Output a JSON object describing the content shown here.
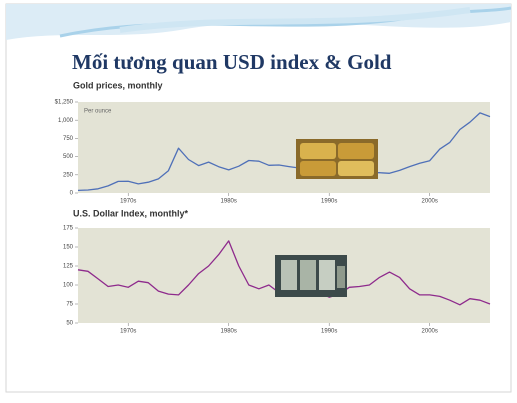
{
  "slide_title": "Mối tương quan USD index & Gold",
  "chart_data": [
    {
      "type": "line",
      "title": "Gold prices, monthly",
      "annotation": "Per ounce",
      "x": [
        1970,
        1971,
        1972,
        1973,
        1974,
        1975,
        1976,
        1977,
        1978,
        1979,
        1980,
        1981,
        1982,
        1983,
        1984,
        1985,
        1986,
        1987,
        1988,
        1989,
        1990,
        1991,
        1992,
        1993,
        1994,
        1995,
        1996,
        1997,
        1998,
        1999,
        2000,
        2001,
        2002,
        2003,
        2004,
        2005,
        2006,
        2007,
        2008,
        2009,
        2010,
        2011
      ],
      "series": [
        {
          "name": "Gold",
          "color": "#4f70b8",
          "values": [
            36,
            41,
            58,
            97,
            159,
            161,
            125,
            148,
            193,
            306,
            615,
            460,
            376,
            424,
            361,
            317,
            368,
            447,
            437,
            381,
            384,
            362,
            344,
            360,
            384,
            384,
            388,
            331,
            294,
            279,
            279,
            271,
            310,
            363,
            409,
            444,
            603,
            695,
            872,
            972,
            1100,
            1050
          ]
        }
      ],
      "xlim": [
        1970,
        2011
      ],
      "xticks": [
        {
          "value": 1975,
          "label": "1970s"
        },
        {
          "value": 1985,
          "label": "1980s"
        },
        {
          "value": 1995,
          "label": "1990s"
        },
        {
          "value": 2005,
          "label": "2000s"
        }
      ],
      "ylim": [
        0,
        1250
      ],
      "yticks": [
        0,
        250,
        500,
        750,
        {
          "value": 1000,
          "label": "1,000"
        },
        {
          "value": 1250,
          "label": "$1,250"
        }
      ]
    },
    {
      "type": "line",
      "title": "U.S. Dollar Index, monthly*",
      "x": [
        1970,
        1971,
        1972,
        1973,
        1974,
        1975,
        1976,
        1977,
        1978,
        1979,
        1980,
        1981,
        1982,
        1983,
        1984,
        1985,
        1986,
        1987,
        1988,
        1989,
        1990,
        1991,
        1992,
        1993,
        1994,
        1995,
        1996,
        1997,
        1998,
        1999,
        2000,
        2001,
        2002,
        2003,
        2004,
        2005,
        2006,
        2007,
        2008,
        2009,
        2010,
        2011
      ],
      "series": [
        {
          "name": "U.S. Dollar Index",
          "color": "#8e2a8c",
          "values": [
            120,
            118,
            108,
            98,
            100,
            97,
            105,
            103,
            92,
            88,
            87,
            100,
            115,
            125,
            140,
            158,
            125,
            100,
            95,
            100,
            90,
            90,
            88,
            93,
            90,
            84,
            88,
            97,
            98,
            100,
            110,
            117,
            110,
            95,
            87,
            87,
            85,
            80,
            74,
            82,
            80,
            75
          ]
        }
      ],
      "xlim": [
        1970,
        2011
      ],
      "xticks": [
        {
          "value": 1975,
          "label": "1970s"
        },
        {
          "value": 1985,
          "label": "1980s"
        },
        {
          "value": 1995,
          "label": "1990s"
        },
        {
          "value": 2005,
          "label": "2000s"
        }
      ],
      "ylim": [
        50,
        175
      ],
      "yticks": [
        50,
        75,
        100,
        125,
        150,
        175
      ]
    }
  ]
}
